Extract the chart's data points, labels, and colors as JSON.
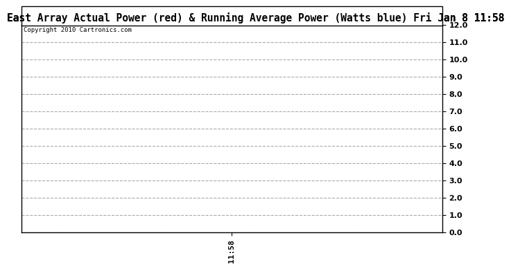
{
  "title": "East Array Actual Power (red) & Running Average Power (Watts blue) Fri Jan 8 11:58",
  "copyright_text": "Copyright 2010 Cartronics.com",
  "x_tick_labels": [
    "11:58"
  ],
  "x_tick_positions": [
    0.5
  ],
  "ylim": [
    0.0,
    12.0
  ],
  "yticks": [
    0.0,
    1.0,
    2.0,
    3.0,
    4.0,
    5.0,
    6.0,
    7.0,
    8.0,
    9.0,
    10.0,
    11.0,
    12.0
  ],
  "xlim": [
    0,
    1
  ],
  "background_color": "#ffffff",
  "grid_color": "#aaaaaa",
  "title_fontsize": 10.5,
  "copyright_fontsize": 6.5,
  "tick_fontsize": 8,
  "x_tick_fontsize": 8,
  "border_color": "#000000"
}
